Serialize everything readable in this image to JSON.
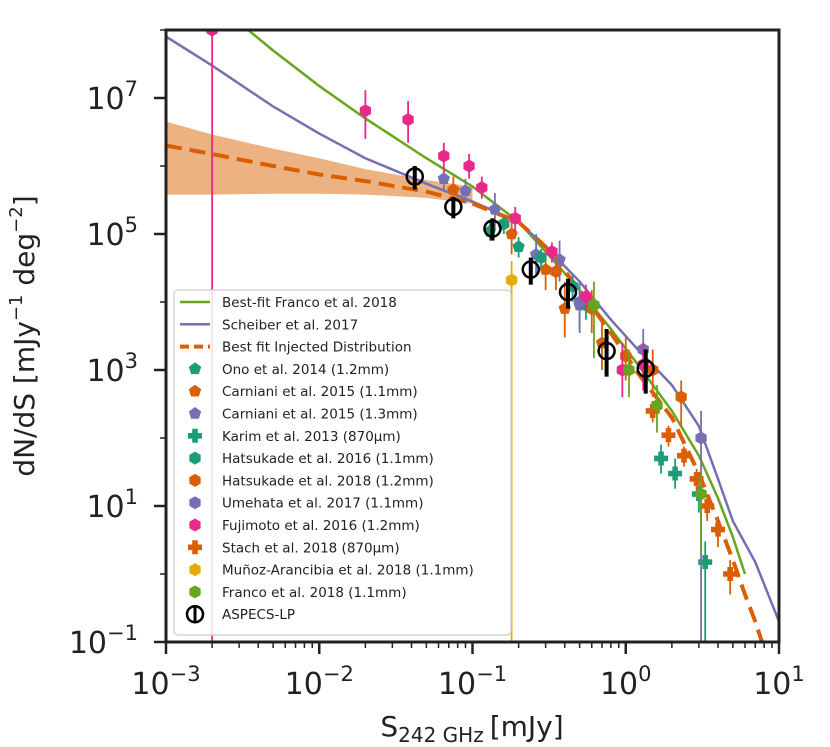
{
  "chart_data": {
    "type": "scatter",
    "xlabel_main": "S",
    "xlabel_sub": "242 GHz",
    "xlabel_unit": "[mJy]",
    "ylabel_main": "dN/dS [mJy",
    "ylabel_exp1": "−1",
    "ylabel_mid": " deg",
    "ylabel_exp2": "−2",
    "ylabel_end": "]",
    "xscale": "log",
    "yscale": "log",
    "xlim": [
      0.001,
      10
    ],
    "ylim": [
      0.1,
      100000000
    ],
    "xticks": [
      {
        "value": 0.001,
        "base": "10",
        "exp": "−3"
      },
      {
        "value": 0.01,
        "base": "10",
        "exp": "−2"
      },
      {
        "value": 0.1,
        "base": "10",
        "exp": "−1"
      },
      {
        "value": 1,
        "base": "10",
        "exp": "0"
      },
      {
        "value": 10,
        "base": "10",
        "exp": "1"
      }
    ],
    "yticks": [
      {
        "value": 0.1,
        "base": "10",
        "exp": "−1"
      },
      {
        "value": 10,
        "base": "10",
        "exp": "1"
      },
      {
        "value": 1000,
        "base": "10",
        "exp": "3"
      },
      {
        "value": 100000,
        "base": "10",
        "exp": "5"
      },
      {
        "value": 10000000,
        "base": "10",
        "exp": "7"
      }
    ],
    "legend_position": "lower-left",
    "band": {
      "name": "Best fit Injected Distribution uncertainty",
      "color": "#e9a46c",
      "x": [
        0.001,
        0.002,
        0.005,
        0.01,
        0.02,
        0.05,
        0.1
      ],
      "upper": [
        4500000,
        2900000,
        1800000,
        1300000,
        900000,
        620000,
        500000
      ],
      "lower": [
        380000,
        380000,
        390000,
        390000,
        380000,
        340000,
        280000
      ]
    },
    "lines": [
      {
        "name": "Best-fit Franco et al. 2018",
        "color": "#66a61e",
        "dash": "solid",
        "points": [
          [
            0.0025,
            180000000
          ],
          [
            0.005,
            50000000
          ],
          [
            0.01,
            15000000
          ],
          [
            0.02,
            5000000
          ],
          [
            0.05,
            1300000
          ],
          [
            0.1,
            500000
          ],
          [
            0.2,
            150000
          ],
          [
            0.3,
            55000
          ],
          [
            0.5,
            15000
          ],
          [
            0.8,
            4000
          ],
          [
            1.2,
            1200
          ],
          [
            2,
            250
          ],
          [
            3,
            55
          ],
          [
            4,
            13
          ],
          [
            5,
            3.5
          ],
          [
            6,
            1
          ]
        ]
      },
      {
        "name": "Scheiber et al. 2017",
        "color": "#7570b3",
        "dash": "solid",
        "points": [
          [
            0.001,
            80000000
          ],
          [
            0.002,
            30000000
          ],
          [
            0.005,
            7500000
          ],
          [
            0.01,
            3000000
          ],
          [
            0.02,
            1300000
          ],
          [
            0.05,
            550000
          ],
          [
            0.1,
            300000
          ],
          [
            0.2,
            150000
          ],
          [
            0.3,
            65000
          ],
          [
            0.5,
            20000
          ],
          [
            0.8,
            5500
          ],
          [
            1.2,
            2000
          ],
          [
            2,
            600
          ],
          [
            3,
            150
          ],
          [
            4,
            25
          ],
          [
            5,
            6
          ],
          [
            7,
            1.5
          ],
          [
            10,
            0.2
          ]
        ]
      },
      {
        "name": "Best fit Injected Distribution",
        "color": "#d95f02",
        "dash": "dashed",
        "points": [
          [
            0.001,
            2000000
          ],
          [
            0.002,
            1500000
          ],
          [
            0.005,
            1000000
          ],
          [
            0.01,
            750000
          ],
          [
            0.02,
            600000
          ],
          [
            0.05,
            420000
          ],
          [
            0.1,
            280000
          ],
          [
            0.2,
            150000
          ],
          [
            0.3,
            65000
          ],
          [
            0.5,
            15000
          ],
          [
            0.8,
            3500
          ],
          [
            1.2,
            900
          ],
          [
            2,
            200
          ],
          [
            3,
            30
          ],
          [
            4,
            6
          ],
          [
            5,
            1.6
          ],
          [
            6,
            0.5
          ],
          [
            7,
            0.2
          ],
          [
            8,
            0.08
          ]
        ]
      }
    ],
    "series": [
      {
        "name": "Ono et al. 2014 (1.2mm)",
        "marker": "pentagon",
        "color": "#1b9e77",
        "points": [
          [
            0.13,
            110000,
            150000,
            80000
          ],
          [
            0.2,
            65000,
            90000,
            45000
          ]
        ]
      },
      {
        "name": "Carniani et al. 2015 (1.1mm)",
        "marker": "pentagon",
        "color": "#d95f02",
        "points": [
          [
            0.075,
            450000,
            700000,
            300000
          ],
          [
            0.18,
            100000,
            200000,
            50000
          ],
          [
            0.3,
            30000,
            60000,
            15000
          ],
          [
            0.4,
            8000,
            20000,
            3000
          ],
          [
            0.7,
            2500,
            6000,
            1000
          ]
        ]
      },
      {
        "name": "Carniani et al. 2015 (1.3mm)",
        "marker": "pentagon",
        "color": "#7570b3",
        "points": [
          [
            0.065,
            650000,
            900000,
            450000
          ],
          [
            0.09,
            430000,
            650000,
            280000
          ],
          [
            0.14,
            230000,
            400000,
            120000
          ],
          [
            0.26,
            50000,
            100000,
            25000
          ],
          [
            0.37,
            42000,
            80000,
            20000
          ],
          [
            0.5,
            9000,
            20000,
            3500
          ]
        ]
      },
      {
        "name": "Karim et al. 2013 (870μm)",
        "marker": "cross",
        "color": "#1b9e77",
        "points": [
          [
            1.7,
            50,
            80,
            30
          ],
          [
            2.1,
            30,
            50,
            18
          ],
          [
            3.0,
            15,
            25,
            8
          ],
          [
            3.3,
            1.5,
            3,
            0.1
          ]
        ]
      },
      {
        "name": "Hatsukade et al. 2016 (1.1mm)",
        "marker": "hexagon",
        "color": "#1b9e77",
        "points": [
          [
            0.16,
            140000,
            180000,
            100000
          ],
          [
            0.28,
            45000,
            60000,
            30000
          ],
          [
            0.45,
            17000,
            25000,
            10000
          ],
          [
            0.55,
            9000,
            14000,
            5500
          ]
        ]
      },
      {
        "name": "Hatsukade et al. 2018 (1.2mm)",
        "marker": "hexagon",
        "color": "#d95f02",
        "points": [
          [
            0.35,
            28000,
            50000,
            15000
          ],
          [
            0.6,
            8000,
            15000,
            3500
          ],
          [
            1.0,
            1600,
            3000,
            700
          ],
          [
            1.5,
            1000,
            2000,
            400
          ],
          [
            2.3,
            400,
            700,
            150
          ]
        ]
      },
      {
        "name": "Umehata et al. 2017 (1.1mm)",
        "marker": "hexagon",
        "color": "#7570b3",
        "points": [
          [
            0.5,
            10000,
            20000,
            4000
          ],
          [
            1.3,
            2000,
            4000,
            800
          ],
          [
            3.1,
            100,
            250,
            0.1
          ]
        ]
      },
      {
        "name": "Fujimoto et al. 2016 (1.2mm)",
        "marker": "hexagon",
        "color": "#e7298a",
        "points": [
          [
            0.002,
            100000000,
            1000000000,
            0.01
          ],
          [
            0.02,
            6500000,
            13000000,
            2500000
          ],
          [
            0.038,
            4800000,
            9000000,
            2200000
          ],
          [
            0.065,
            1400000,
            2200000,
            800000
          ],
          [
            0.095,
            1000000,
            1500000,
            650000
          ],
          [
            0.115,
            480000,
            700000,
            330000
          ],
          [
            0.19,
            170000,
            250000,
            110000
          ],
          [
            0.33,
            55000,
            75000,
            38000
          ],
          [
            0.55,
            12000,
            18000,
            8000
          ],
          [
            0.95,
            1000,
            2500,
            400
          ],
          [
            1.3,
            1200,
            2500,
            500
          ]
        ]
      },
      {
        "name": "Stach et al. 2018 (870μm)",
        "marker": "cross",
        "color": "#d95f02",
        "points": [
          [
            1.5,
            250,
            350,
            170
          ],
          [
            1.9,
            110,
            150,
            75
          ],
          [
            2.4,
            55,
            75,
            38
          ],
          [
            2.9,
            25,
            35,
            17
          ],
          [
            3.4,
            10,
            15,
            6
          ],
          [
            4.0,
            4.5,
            7,
            2.5
          ],
          [
            4.8,
            1.0,
            1.6,
            0.5
          ]
        ]
      },
      {
        "name": "Muñoz-Arancibia et al. 2018 (1.1mm)",
        "marker": "hexagon",
        "color": "#e6ab02",
        "points": [
          [
            0.18,
            21000,
            40000,
            0.01
          ]
        ]
      },
      {
        "name": "Franco et al. 2018 (1.1mm)",
        "marker": "hexagon",
        "color": "#66a61e",
        "points": [
          [
            0.62,
            9000,
            20000,
            1500
          ],
          [
            1.05,
            1000,
            2000,
            400
          ],
          [
            1.6,
            300,
            600,
            120
          ],
          [
            3.1,
            15,
            30,
            2
          ]
        ]
      },
      {
        "name": "ASPECS-LP",
        "marker": "open-circle",
        "color": "#000000",
        "points": [
          [
            0.042,
            700000,
            1000000,
            450000
          ],
          [
            0.075,
            250000,
            350000,
            170000
          ],
          [
            0.135,
            120000,
            170000,
            80000
          ],
          [
            0.24,
            30000,
            45000,
            18000
          ],
          [
            0.42,
            14000,
            22000,
            8000
          ],
          [
            0.75,
            1900,
            4000,
            800
          ],
          [
            1.35,
            1050,
            2000,
            450
          ]
        ]
      }
    ]
  },
  "legend": [
    {
      "label": "Best-fit Franco et al. 2018",
      "kind": "line",
      "color": "#66a61e"
    },
    {
      "label": "Scheiber et al. 2017",
      "kind": "line",
      "color": "#7570b3"
    },
    {
      "label": "Best fit Injected Distribution",
      "kind": "dash",
      "color": "#d95f02"
    },
    {
      "label": "Ono et al. 2014 (1.2mm)",
      "kind": "pentagon",
      "color": "#1b9e77"
    },
    {
      "label": "Carniani et al. 2015 (1.1mm)",
      "kind": "pentagon",
      "color": "#d95f02"
    },
    {
      "label": "Carniani et al. 2015 (1.3mm)",
      "kind": "pentagon",
      "color": "#7570b3"
    },
    {
      "label": "Karim et al. 2013 (870μm)",
      "kind": "cross",
      "color": "#1b9e77"
    },
    {
      "label": "Hatsukade et al. 2016 (1.1mm)",
      "kind": "hexagon",
      "color": "#1b9e77"
    },
    {
      "label": "Hatsukade et al. 2018 (1.2mm)",
      "kind": "hexagon",
      "color": "#d95f02"
    },
    {
      "label": "Umehata et al. 2017 (1.1mm)",
      "kind": "hexagon",
      "color": "#7570b3"
    },
    {
      "label": "Fujimoto et al. 2016 (1.2mm)",
      "kind": "hexagon",
      "color": "#e7298a"
    },
    {
      "label": "Stach et al. 2018 (870μm)",
      "kind": "cross",
      "color": "#d95f02"
    },
    {
      "label": "Muñoz-Arancibia et al. 2018 (1.1mm)",
      "kind": "hexagon",
      "color": "#e6ab02"
    },
    {
      "label": "Franco et al. 2018 (1.1mm)",
      "kind": "hexagon",
      "color": "#66a61e"
    },
    {
      "label": "ASPECS-LP",
      "kind": "open-circle",
      "color": "#000000"
    }
  ]
}
